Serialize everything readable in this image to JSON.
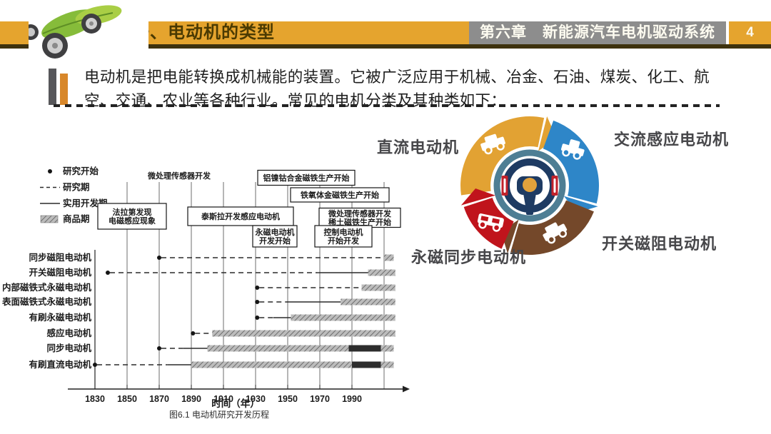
{
  "header": {
    "title": "一、电动机的类型",
    "chapter": "第六章　新能源汽车电机驱动系统",
    "page_number": "4",
    "logo_icon": "leaf-car-logo"
  },
  "intro": {
    "text": "电动机是把电能转换成机械能的装置。它被广泛应用于机械、冶金、石油、煤炭、化工、航空、交通、农业等各种行业。常见的电机分类及其种类如下："
  },
  "diagram": {
    "center_icon": "steering-wheel-icon",
    "items": [
      {
        "label": "直流电动机",
        "color": "#E2A233",
        "icon": "van-icon"
      },
      {
        "label": "交流感应电动机",
        "color": "#2E86C8",
        "icon": "golf-cart-icon"
      },
      {
        "label": "开关磁阻电动机",
        "color": "#74482A",
        "icon": "suv-icon"
      },
      {
        "label": "永磁同步电动机",
        "color": "#C0141C",
        "icon": "bus-icon"
      }
    ]
  },
  "chart_data": {
    "type": "gantt-timeline",
    "title": "图6.1 电动机研究开发历程",
    "xlabel": "时间（年）",
    "x_range": [
      1830,
      2020
    ],
    "x_ticks": [
      1830,
      1850,
      1870,
      1890,
      1910,
      1930,
      1950,
      1970,
      1990
    ],
    "extra_gridlines": [
      2010
    ],
    "legend": [
      {
        "symbol": "dot",
        "label": "研究开始"
      },
      {
        "symbol": "dashed",
        "label": "研究期"
      },
      {
        "symbol": "solid",
        "label": "实用开发期"
      },
      {
        "symbol": "hatched",
        "label": "商品期"
      }
    ],
    "rows": [
      {
        "label": "同步磁阻电动机",
        "start": 1870,
        "research_until": 2009,
        "dev_until": null,
        "commercial": [
          2010,
          2016
        ],
        "dark": null
      },
      {
        "label": "开关磁阻电动机",
        "start": 1838,
        "research_until": 1969,
        "dev_until": 2000,
        "commercial": [
          2000,
          2017
        ],
        "dark": null
      },
      {
        "label": "内部磁铁式永磁电动机",
        "start": 1931,
        "research_until": 1995,
        "dev_until": null,
        "commercial": [
          1996,
          2017
        ],
        "dark": null
      },
      {
        "label": "表面磁铁式永磁电动机",
        "start": 1931,
        "research_until": 1950,
        "dev_until": 1983,
        "commercial": [
          1983,
          2017
        ],
        "dark": null
      },
      {
        "label": "有刷永磁电动机",
        "start": 1931,
        "research_until": 1941,
        "dev_until": 1952,
        "commercial": [
          1952,
          2017
        ],
        "dark": null
      },
      {
        "label": "感应电动机",
        "start": 1891,
        "research_until": 1903,
        "dev_until": null,
        "commercial": [
          1903,
          2017
        ],
        "dark": null
      },
      {
        "label": "同步电动机",
        "start": 1870,
        "research_until": 1885,
        "dev_until": 1900,
        "commercial": [
          1900,
          2016
        ],
        "dark": [
          1988,
          2008
        ]
      },
      {
        "label": "有刷直流电动机",
        "start": 1830,
        "research_until": 1875,
        "dev_until": 1890,
        "commercial": [
          1890,
          2016
        ],
        "dark": [
          1990,
          2008
        ]
      }
    ],
    "annotations": [
      {
        "text_lines": [
          "微处理传感器开发"
        ],
        "boxed": false
      },
      {
        "text_lines": [
          "法拉第发现",
          "电磁感应现象"
        ],
        "boxed": true
      },
      {
        "text_lines": [
          "泰斯拉开发感应电动机"
        ],
        "boxed": true
      },
      {
        "text_lines": [
          "铝镍钴合金磁铁生产开始"
        ],
        "boxed": true
      },
      {
        "text_lines": [
          "铁氧体金磁铁生产开始"
        ],
        "boxed": true
      },
      {
        "text_lines": [
          "微处理传感器开发",
          "稀土磁铁生产开始"
        ],
        "boxed": true
      },
      {
        "text_lines": [
          "永磁电动机",
          "开发开始"
        ],
        "boxed": true
      },
      {
        "text_lines": [
          "控制电动机",
          "开始开发"
        ],
        "boxed": true
      }
    ]
  }
}
